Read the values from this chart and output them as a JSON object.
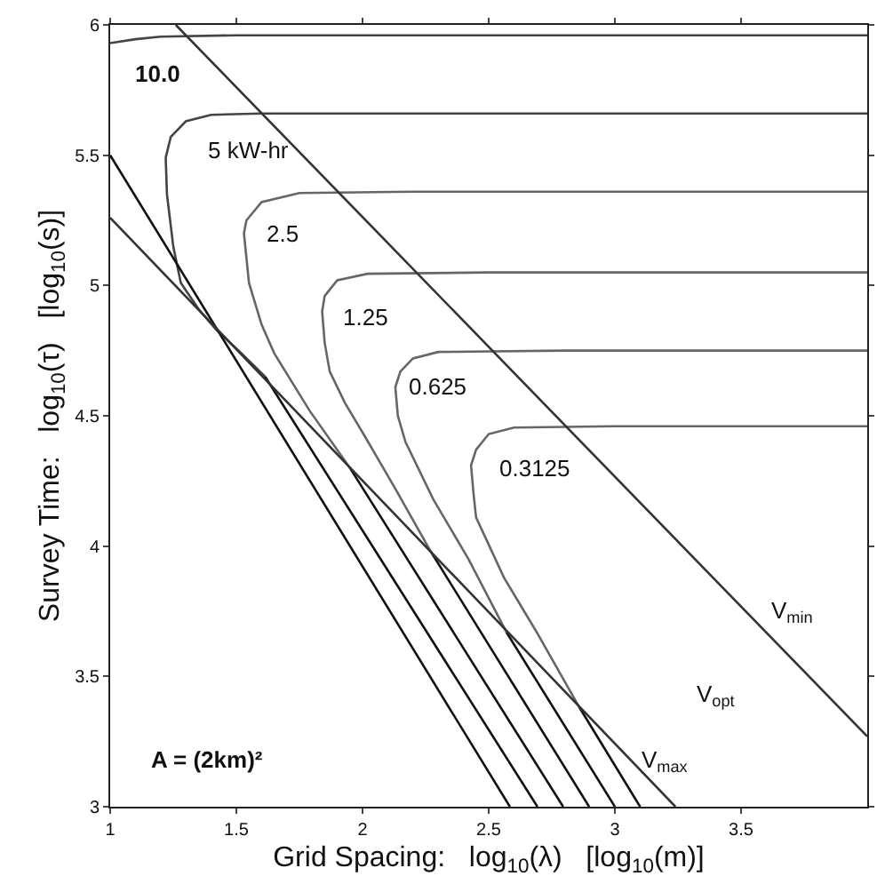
{
  "chart_data": {
    "type": "line",
    "xlabel": "Grid Spacing:   log$_{10}$(λ)   [log$_{10}$(m)]",
    "ylabel": "Survey Time:   log$_{10}$(τ)   [log$_{10}$(s)]",
    "xlim": [
      1,
      4
    ],
    "xticks": [
      1,
      1.5,
      2,
      2.5,
      3,
      3.5
    ],
    "ylim": [
      3,
      6
    ],
    "yticks": [
      3,
      3.5,
      4,
      4.5,
      5,
      5.5,
      6
    ],
    "marker": "none",
    "line_style": "solid",
    "series": [
      {
        "color": "#444444",
        "x": [
          4,
          1.5,
          1.2,
          1.1,
          1.0
        ],
        "values": [
          5.96,
          5.96,
          5.955,
          5.945,
          5.93
        ]
      },
      {
        "color": "#444444",
        "x": [
          4,
          2.5,
          1.6,
          1.4,
          1.3,
          1.24,
          1.22,
          1.225,
          1.25,
          1.28,
          1.35,
          1.42,
          1.52,
          1.614
        ],
        "values": [
          5.66,
          5.66,
          5.66,
          5.655,
          5.63,
          5.57,
          5.49,
          5.35,
          5.15,
          5.01,
          4.91,
          4.83,
          4.74,
          4.65
        ]
      },
      {
        "color": "#666666",
        "x": [
          4,
          2.2,
          1.75,
          1.6,
          1.54,
          1.53,
          1.55,
          1.6,
          1.65,
          1.79,
          1.95
        ],
        "values": [
          5.36,
          5.36,
          5.355,
          5.32,
          5.25,
          5.2,
          5.01,
          4.85,
          4.74,
          4.52,
          4.3
        ]
      },
      {
        "color": "#666666",
        "x": [
          4,
          2.5,
          2.02,
          1.9,
          1.85,
          1.84,
          1.85,
          1.87,
          1.93,
          2.01,
          2.13,
          2.27
        ],
        "values": [
          5.05,
          5.05,
          5.045,
          5.02,
          4.96,
          4.9,
          4.78,
          4.67,
          4.55,
          4.42,
          4.22,
          3.98
        ]
      },
      {
        "color": "#666666",
        "x": [
          4,
          2.8,
          2.3,
          2.2,
          2.15,
          2.13,
          2.14,
          2.17,
          2.28,
          2.42,
          2.57
        ],
        "values": [
          4.75,
          4.75,
          4.745,
          4.72,
          4.67,
          4.61,
          4.5,
          4.4,
          4.18,
          3.95,
          3.67
        ]
      },
      {
        "color": "#666666",
        "x": [
          4,
          3.0,
          2.6,
          2.5,
          2.45,
          2.43,
          2.44,
          2.45,
          2.56,
          2.69,
          2.86
        ],
        "values": [
          4.46,
          4.46,
          4.455,
          4.43,
          4.37,
          4.31,
          4.2,
          4.11,
          3.88,
          3.67,
          3.38
        ]
      },
      {
        "color": "#111111",
        "x": [
          1,
          2.584
        ],
        "values": [
          5.5,
          3
        ]
      },
      {
        "color": "#111111",
        "x": [
          1.614,
          2.693
        ],
        "values": [
          4.65,
          3
        ]
      },
      {
        "color": "#111111",
        "x": [
          1.95,
          2.795
        ],
        "values": [
          4.3,
          3
        ]
      },
      {
        "color": "#111111",
        "x": [
          2.27,
          2.898
        ],
        "values": [
          3.98,
          3
        ]
      },
      {
        "color": "#111111",
        "x": [
          2.57,
          3.0
        ],
        "values": [
          3.67,
          3
        ]
      },
      {
        "color": "#111111",
        "x": [
          2.86,
          3.1
        ],
        "values": [
          3.38,
          3
        ]
      },
      {
        "color": "#333333",
        "x": [
          1,
          3.24
        ],
        "values": [
          5.26,
          3
        ]
      },
      {
        "color": "#333333",
        "x": [
          1.26,
          4
        ],
        "values": [
          6,
          3.27
        ]
      }
    ],
    "annotations": [
      "10.0",
      "5 kW-hr",
      "2.5",
      "1.25",
      "0.625",
      "0.3125",
      "V$_{min}$",
      "V$_{opt}$",
      "V$_{max}$",
      "A = (2km)²"
    ]
  }
}
